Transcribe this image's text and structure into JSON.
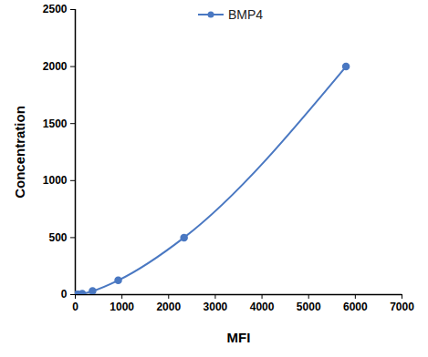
{
  "chart_data": {
    "type": "line",
    "x_label": "MFI",
    "y_label": "Concentration",
    "x": [
      20,
      60,
      150,
      370,
      920,
      2330,
      5800
    ],
    "series": [
      {
        "name": "BMP4",
        "color": "#4a78c2",
        "marker": "circle",
        "line_style": "solid",
        "values": [
          0,
          2,
          7.8,
          31,
          125,
          500,
          2000
        ]
      }
    ],
    "xlim": [
      0,
      7000
    ],
    "xticks": [
      0,
      1000,
      2000,
      3000,
      4000,
      5000,
      6000,
      7000
    ],
    "ylim": [
      0,
      2500
    ],
    "yticks": [
      0,
      500,
      1000,
      1500,
      2000,
      2500
    ],
    "grid": false,
    "legend": "top"
  }
}
